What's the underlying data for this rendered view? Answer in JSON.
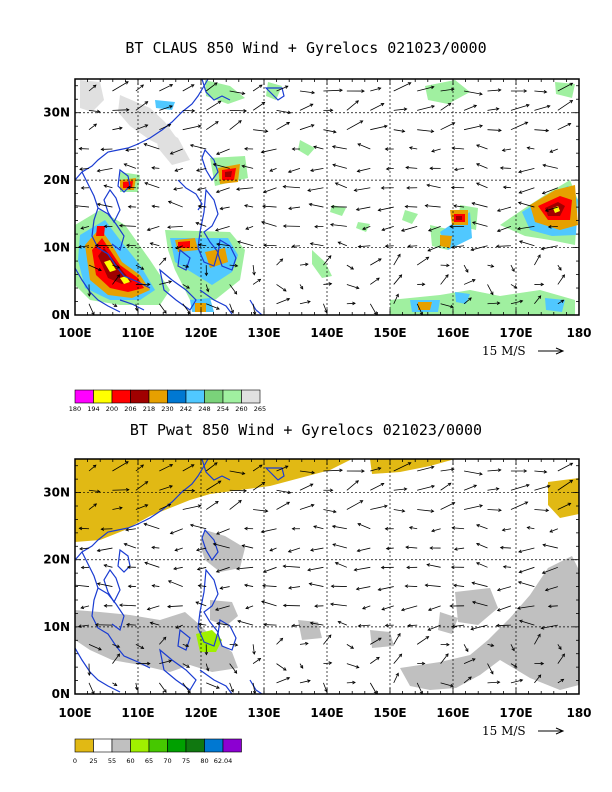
{
  "panels": [
    {
      "title": "BT CLAUS 850 Wind + Gyrelocs 021023/0000",
      "lon_ticks": [
        "100E",
        "110E",
        "120E",
        "130E",
        "140E",
        "150E",
        "160E",
        "170E",
        "180"
      ],
      "lat_ticks": [
        "0N",
        "10N",
        "20N",
        "30N"
      ],
      "lon_range": [
        100,
        180
      ],
      "lat_range": [
        0,
        35
      ],
      "reference_vector": "15 M/S",
      "colorbar_colors": [
        "#ff00ff",
        "#ffff00",
        "#ff0000",
        "#a00000",
        "#e6a000",
        "#0078d2",
        "#50c8ff",
        "#7ad27a",
        "#a0f0a0",
        "#e0e0e0"
      ],
      "colorbar_labels": [
        "180",
        "194",
        "200",
        "206",
        "218",
        "230",
        "242",
        "248",
        "254",
        "260",
        "265"
      ],
      "colorbar_position": "below"
    },
    {
      "title": "BT Pwat 850 Wind + Gyrelocs 021023/0000",
      "lon_ticks": [
        "100E",
        "110E",
        "120E",
        "130E",
        "140E",
        "150E",
        "160E",
        "170E",
        "180"
      ],
      "lat_ticks": [
        "0N",
        "10N",
        "20N",
        "30N"
      ],
      "lon_range": [
        100,
        180
      ],
      "lat_range": [
        0,
        35
      ],
      "reference_vector": "15 M/S",
      "colorbar_colors": [
        "#e1b914",
        "#ffffff",
        "#c0c0c0",
        "#a0f000",
        "#46c800",
        "#00a000",
        "#107810",
        "#0078d2",
        "#8c00d2"
      ],
      "colorbar_labels": [
        "0",
        "25",
        "55",
        "60",
        "65",
        "70",
        "75",
        "80",
        "62.04"
      ],
      "colorbar_position": "below"
    }
  ]
}
